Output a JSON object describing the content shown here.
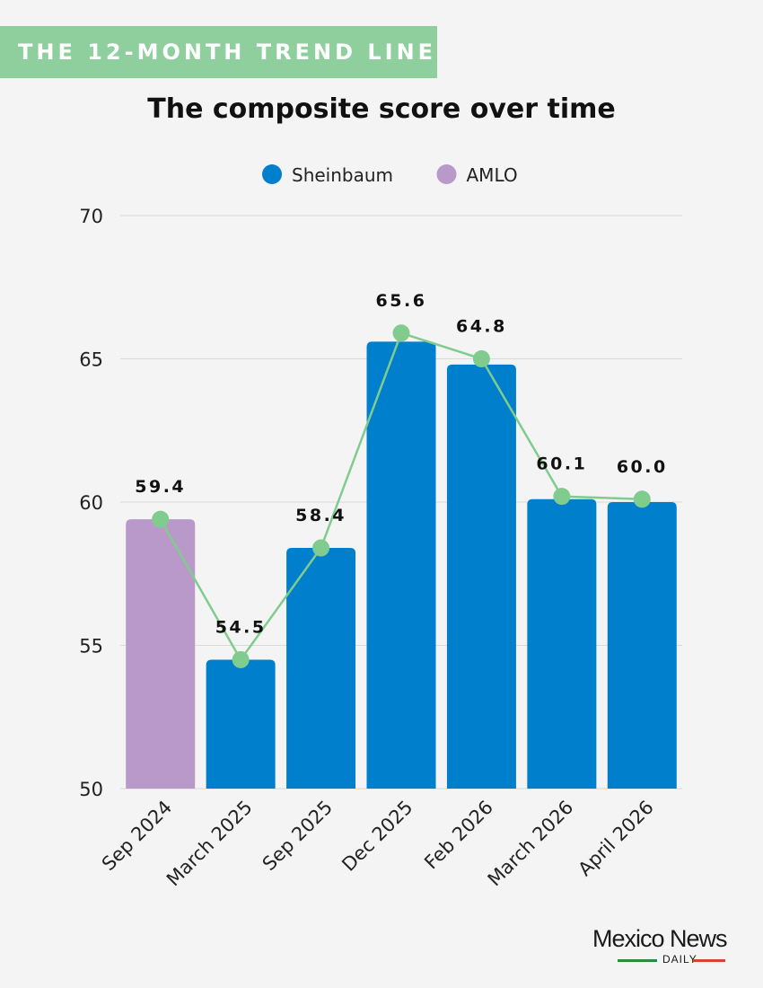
{
  "banner": "THE 12-MONTH TREND LINE",
  "logo": {
    "main": "Mexico News",
    "sub": "DAILY"
  },
  "chart_data": {
    "type": "bar",
    "title": "The composite score over time",
    "categories": [
      "Sep 2024",
      "March 2025",
      "Sep 2025",
      "Dec 2025",
      "Feb 2026",
      "March 2026",
      "April 2026"
    ],
    "values": [
      59.4,
      54.5,
      58.4,
      65.6,
      64.8,
      60.1,
      60.0
    ],
    "data_labels": [
      "59.4",
      "54.5",
      "58.4",
      "65.6",
      "64.8",
      "60.1",
      "60.0"
    ],
    "bar_groups": [
      "AMLO",
      "Sheinbaum",
      "Sheinbaum",
      "Sheinbaum",
      "Sheinbaum",
      "Sheinbaum",
      "Sheinbaum"
    ],
    "legend": [
      {
        "name": "Sheinbaum",
        "color": "#0080cc"
      },
      {
        "name": "AMLO",
        "color": "#b999c9"
      }
    ],
    "legend_position": "top-center",
    "trend_line": {
      "values": [
        59.4,
        54.5,
        58.4,
        65.9,
        65.0,
        60.2,
        60.1
      ],
      "color": "#7fcc8e"
    },
    "ylim": [
      50,
      70
    ],
    "yticks": [
      50,
      55,
      60,
      65,
      70
    ],
    "grid": true,
    "xlabel": "",
    "ylabel": ""
  }
}
